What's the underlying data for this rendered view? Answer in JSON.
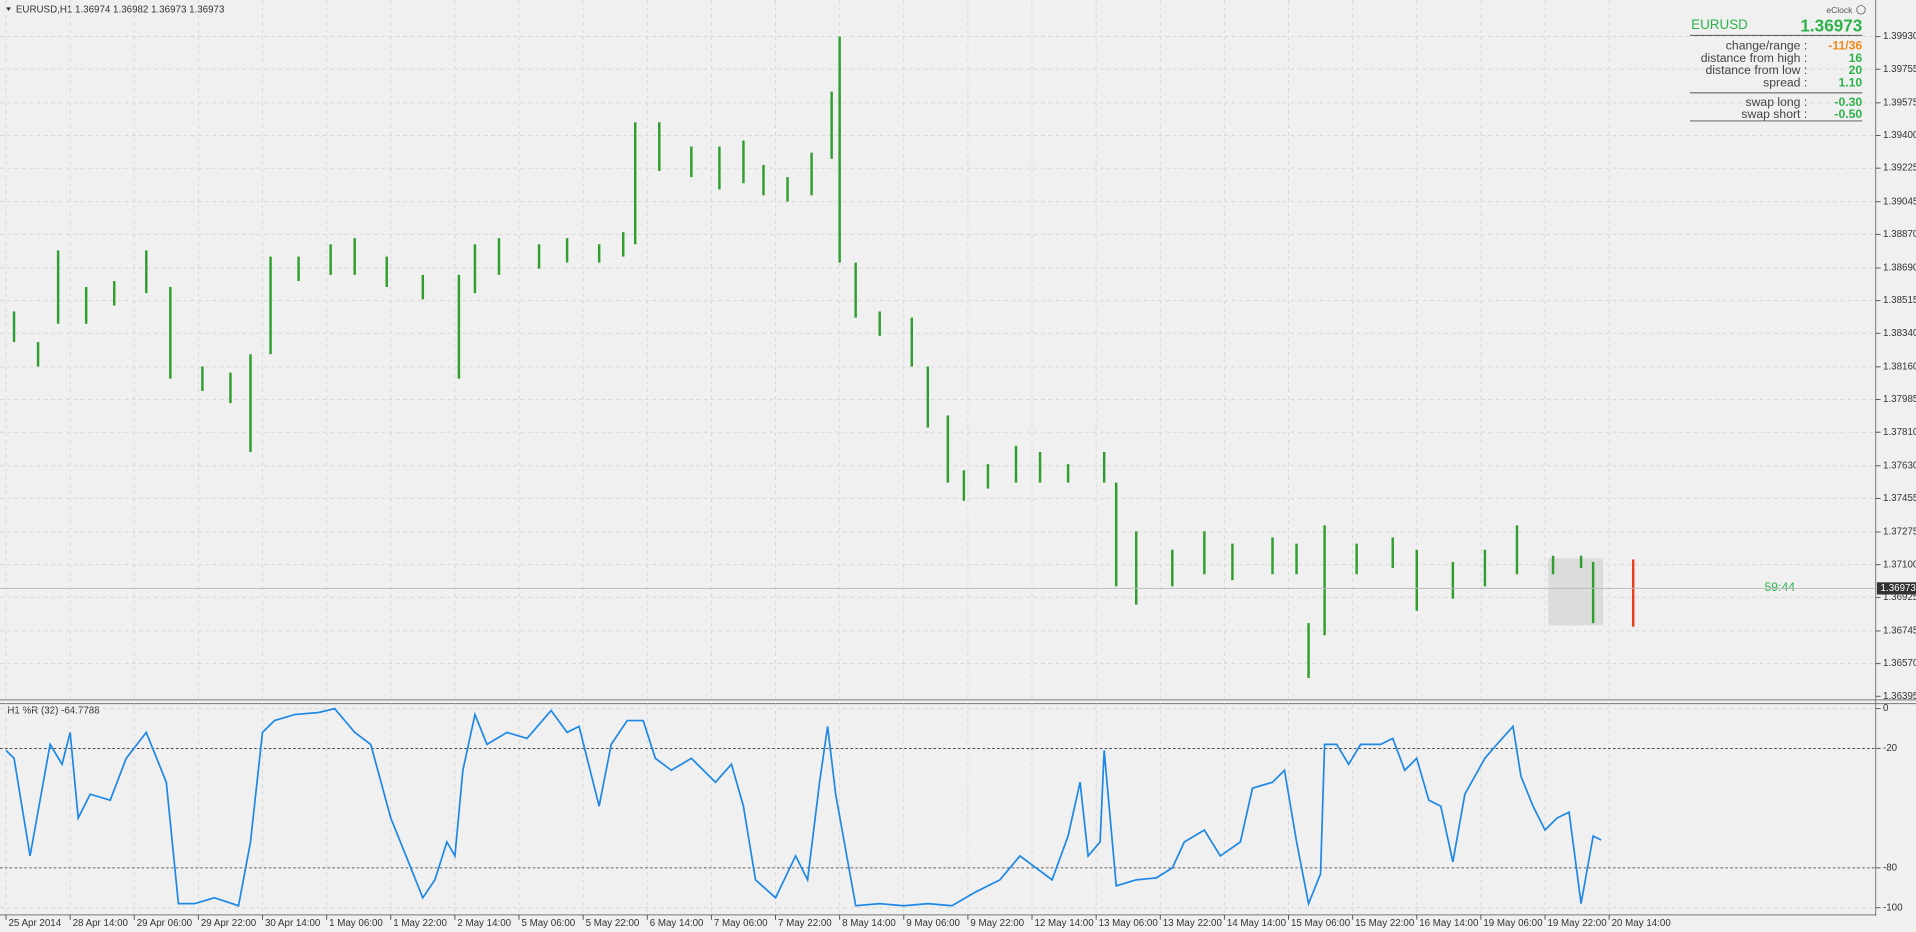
{
  "header": "EURUSD,H1  1.36974 1.36982 1.36973 1.36973",
  "chart_data": [
    {
      "type": "bars",
      "color": "#2f9e2f",
      "grid": true,
      "x": [
        2,
        8,
        13,
        20,
        27,
        35,
        41,
        49,
        56,
        61,
        66,
        73,
        81,
        87,
        95,
        104,
        113,
        117,
        123,
        133,
        140,
        148,
        154,
        157,
        163,
        171,
        178,
        184,
        189,
        195,
        201,
        206,
        208,
        212,
        218,
        226,
        230,
        235,
        239,
        245,
        252,
        258,
        265,
        274,
        277,
        282,
        291,
        299,
        306,
        316,
        322,
        325,
        329,
        337,
        346,
        352,
        361,
        369,
        377,
        386,
        393,
        396
      ],
      "high": [
        1.38457,
        1.38293,
        1.38784,
        1.38588,
        1.3862,
        1.38784,
        1.38588,
        1.38162,
        1.38129,
        1.38228,
        1.38751,
        1.38751,
        1.38817,
        1.3885,
        1.38751,
        1.38653,
        1.38653,
        1.38817,
        1.3885,
        1.38817,
        1.3885,
        1.38817,
        1.38882,
        1.39471,
        1.39471,
        1.39341,
        1.39341,
        1.39373,
        1.39242,
        1.39177,
        1.39308,
        1.39635,
        1.3993,
        1.38719,
        1.38457,
        1.38424,
        1.38162,
        1.379,
        1.37606,
        1.37639,
        1.37737,
        1.37704,
        1.37639,
        1.37704,
        1.3754,
        1.37279,
        1.3718,
        1.37279,
        1.37213,
        1.37246,
        1.37213,
        1.36787,
        1.37311,
        1.37213,
        1.37246,
        1.3718,
        1.37115,
        1.3718,
        1.37311,
        1.37148,
        1.37148,
        1.37115
      ],
      "low": [
        1.38293,
        1.38162,
        1.38391,
        1.38391,
        1.38489,
        1.38555,
        1.38097,
        1.38031,
        1.37966,
        1.37704,
        1.38228,
        1.3862,
        1.38653,
        1.38653,
        1.38588,
        1.38522,
        1.38097,
        1.38555,
        1.38653,
        1.38686,
        1.38719,
        1.38719,
        1.38751,
        1.38817,
        1.3921,
        1.39177,
        1.39111,
        1.39144,
        1.39079,
        1.39046,
        1.39079,
        1.39275,
        1.38719,
        1.38424,
        1.38326,
        1.38162,
        1.37835,
        1.3754,
        1.37442,
        1.37508,
        1.3754,
        1.3754,
        1.3754,
        1.3754,
        1.36984,
        1.36886,
        1.36984,
        1.37049,
        1.37017,
        1.37049,
        1.37049,
        1.36493,
        1.36722,
        1.37049,
        1.37082,
        1.36853,
        1.36918,
        1.36984,
        1.37049,
        1.37049,
        1.37082,
        1.36787
      ],
      "current_bar": {
        "x": 406,
        "high": 1.37128,
        "low": 1.36768,
        "color": "#e8401c"
      },
      "bid": 1.36973,
      "ylim": [
        1.36382,
        1.40126
      ],
      "yticks": [
        {
          "value": 1.3993,
          "label": "1.39930"
        },
        1.39755,
        1.39575,
        {
          "value": 1.394,
          "label": "1.39400"
        },
        1.39225,
        1.39045,
        {
          "value": 1.3887,
          "label": "1.38870"
        },
        {
          "value": 1.3869,
          "label": "1.38690"
        },
        1.38515,
        {
          "value": 1.3834,
          "label": "1.38340"
        },
        {
          "value": 1.3816,
          "label": "1.38160"
        },
        1.37985,
        {
          "value": 1.3781,
          "label": "1.37810"
        },
        {
          "value": 1.3763,
          "label": "1.37630"
        },
        1.37455,
        1.37275,
        {
          "value": 1.371,
          "label": "1.37100"
        },
        1.36925,
        1.36745,
        {
          "value": 1.3657,
          "label": "1.36570"
        },
        1.36395
      ]
    },
    {
      "type": "line",
      "title": "H1  %R (32) -64.7788",
      "color": "#1e88e5",
      "grid": true,
      "x": [
        0,
        2,
        6,
        11,
        14,
        16,
        18,
        21,
        26,
        30,
        35,
        40,
        43,
        47,
        52,
        58,
        61,
        64,
        67,
        72,
        78,
        82,
        87,
        91,
        96,
        101,
        104,
        107,
        110,
        112,
        114,
        117,
        120,
        125,
        130,
        136,
        140,
        143,
        148,
        151,
        155,
        159,
        162,
        166,
        171,
        177,
        181,
        184,
        187,
        192,
        197,
        200,
        203,
        205,
        207,
        212,
        218,
        224,
        230,
        236,
        242,
        248,
        253,
        261,
        265,
        268,
        270,
        273,
        274,
        277,
        282,
        287,
        291,
        294,
        299,
        303,
        308,
        311,
        316,
        319,
        322,
        325,
        328,
        329,
        332,
        335,
        338,
        343,
        346,
        349,
        352,
        355,
        358,
        361,
        364,
        369,
        372,
        376,
        378,
        381,
        384,
        387,
        390,
        393,
        396,
        398
      ],
      "values": [
        -21,
        -25,
        -74,
        -18,
        -28,
        -12,
        -55,
        -43,
        -46,
        -25,
        -12,
        -37,
        -98,
        -98,
        -95,
        -99,
        -67,
        -12,
        -6,
        -3,
        -2,
        0,
        -12,
        -18,
        -55,
        -80,
        -95,
        -86,
        -67,
        -74,
        -31,
        -3,
        -18,
        -12,
        -15,
        -1,
        -12,
        -9,
        -49,
        -18,
        -6,
        -6,
        -25,
        -31,
        -25,
        -37,
        -28,
        -49,
        -86,
        -95,
        -74,
        -86,
        -37,
        -9,
        -43,
        -99,
        -98,
        -99,
        -98,
        -99,
        -92,
        -86,
        -74,
        -86,
        -64,
        -37,
        -74,
        -67,
        -21,
        -89,
        -86,
        -85,
        -80,
        -67,
        -61,
        -74,
        -67,
        -40,
        -37,
        -31,
        -67,
        -98,
        -83,
        -18,
        -18,
        -28,
        -18,
        -18,
        -15,
        -31,
        -25,
        -46,
        -49,
        -77,
        -43,
        -25,
        -18,
        -9,
        -34,
        -49,
        -61,
        -55,
        -52,
        -98,
        -64,
        -66
      ],
      "ylim": [
        -103,
        2.5
      ],
      "yticks": [
        0,
        -20,
        -80,
        -100
      ],
      "levels": [
        -20,
        -80
      ],
      "xlim": [
        -1.5,
        466.5
      ],
      "xticks": [
        {
          "value": 0,
          "label": "25 Apr 2014"
        },
        {
          "value": 16,
          "label": "28 Apr 14:00"
        },
        {
          "value": 32,
          "label": "29 Apr 06:00"
        },
        {
          "value": 48,
          "label": "29 Apr 22:00"
        },
        {
          "value": 64,
          "label": "30 Apr 14:00"
        },
        {
          "value": 80,
          "label": "1 May 06:00"
        },
        {
          "value": 96,
          "label": "1 May 22:00"
        },
        {
          "value": 112,
          "label": "2 May 14:00"
        },
        {
          "value": 128,
          "label": "5 May 06:00"
        },
        {
          "value": 144,
          "label": "5 May 22:00"
        },
        {
          "value": 160,
          "label": "6 May 14:00"
        },
        {
          "value": 176,
          "label": "7 May 06:00"
        },
        {
          "value": 192,
          "label": "7 May 22:00"
        },
        {
          "value": 208,
          "label": "8 May 14:00"
        },
        {
          "value": 224,
          "label": "9 May 06:00"
        },
        {
          "value": 240,
          "label": "9 May 22:00"
        },
        {
          "value": 256,
          "label": "12 May 14:00"
        },
        {
          "value": 272,
          "label": "13 May 06:00"
        },
        {
          "value": 288,
          "label": "13 May 22:00"
        },
        {
          "value": 304,
          "label": "14 May 14:00"
        },
        {
          "value": 320,
          "label": "15 May 06:00"
        },
        {
          "value": 336,
          "label": "15 May 22:00"
        },
        {
          "value": 352,
          "label": "16 May 14:00"
        },
        {
          "value": 368,
          "label": "19 May 06:00"
        },
        {
          "value": 384,
          "label": "19 May 22:00"
        },
        {
          "value": 400,
          "label": "20 May 14:00"
        }
      ]
    }
  ],
  "timer": "59:44",
  "panel": {
    "clock": "eClock",
    "symbol": "EURUSD",
    "price": "1.36973",
    "rows": [
      {
        "label": "change/range :",
        "value": "-11/36",
        "color": "#f08a1c"
      },
      {
        "label": "distance from high :",
        "value": "16",
        "color": "#2db34a"
      },
      {
        "label": "distance from low :",
        "value": "20",
        "color": "#2db34a"
      },
      {
        "label": "spread :",
        "value": "1.10",
        "color": "#2db34a"
      },
      {
        "label": "swap long :",
        "value": "-0.30",
        "color": "#2db34a"
      },
      {
        "label": "swap short :",
        "value": "-0.50",
        "color": "#2db34a"
      }
    ]
  }
}
